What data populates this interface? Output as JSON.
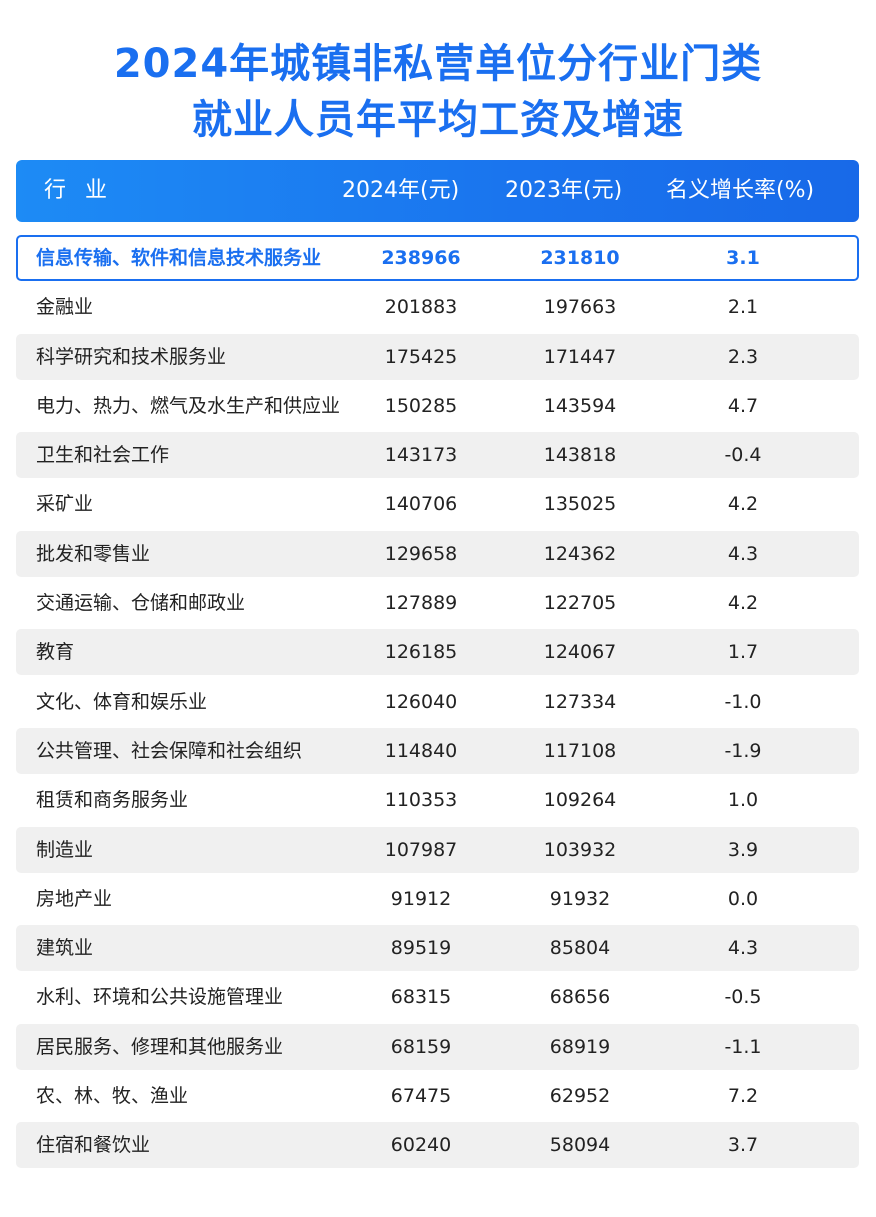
{
  "title_line1": "2024年城镇非私营单位分行业门类",
  "title_line2": "就业人员年平均工资及增速",
  "accent_color": "#1a6ff0",
  "chart_data": {
    "type": "table",
    "columns": [
      "行 业",
      "2024年(元)",
      "2023年(元)",
      "名义增长率(%)"
    ],
    "highlight_row": 0,
    "rows": [
      {
        "industry": "信息传输、软件和信息技术服务业",
        "y2024": "238966",
        "y2023": "231810",
        "growth": "3.1"
      },
      {
        "industry": "金融业",
        "y2024": "201883",
        "y2023": "197663",
        "growth": "2.1"
      },
      {
        "industry": "科学研究和技术服务业",
        "y2024": "175425",
        "y2023": "171447",
        "growth": "2.3"
      },
      {
        "industry": "电力、热力、燃气及水生产和供应业",
        "y2024": "150285",
        "y2023": "143594",
        "growth": "4.7"
      },
      {
        "industry": "卫生和社会工作",
        "y2024": "143173",
        "y2023": "143818",
        "growth": "-0.4"
      },
      {
        "industry": "采矿业",
        "y2024": "140706",
        "y2023": "135025",
        "growth": "4.2"
      },
      {
        "industry": "批发和零售业",
        "y2024": "129658",
        "y2023": "124362",
        "growth": "4.3"
      },
      {
        "industry": "交通运输、仓储和邮政业",
        "y2024": "127889",
        "y2023": "122705",
        "growth": "4.2"
      },
      {
        "industry": "教育",
        "y2024": "126185",
        "y2023": "124067",
        "growth": "1.7"
      },
      {
        "industry": "文化、体育和娱乐业",
        "y2024": "126040",
        "y2023": "127334",
        "growth": "-1.0"
      },
      {
        "industry": "公共管理、社会保障和社会组织",
        "y2024": "114840",
        "y2023": "117108",
        "growth": "-1.9"
      },
      {
        "industry": "租赁和商务服务业",
        "y2024": "110353",
        "y2023": "109264",
        "growth": "1.0"
      },
      {
        "industry": "制造业",
        "y2024": "107987",
        "y2023": "103932",
        "growth": "3.9"
      },
      {
        "industry": "房地产业",
        "y2024": "91912",
        "y2023": "91932",
        "growth": "0.0"
      },
      {
        "industry": "建筑业",
        "y2024": "89519",
        "y2023": "85804",
        "growth": "4.3"
      },
      {
        "industry": "水利、环境和公共设施管理业",
        "y2024": "68315",
        "y2023": "68656",
        "growth": "-0.5"
      },
      {
        "industry": "居民服务、修理和其他服务业",
        "y2024": "68159",
        "y2023": "68919",
        "growth": "-1.1"
      },
      {
        "industry": "农、林、牧、渔业",
        "y2024": "67475",
        "y2023": "62952",
        "growth": "7.2"
      },
      {
        "industry": "住宿和餐饮业",
        "y2024": "60240",
        "y2023": "58094",
        "growth": "3.7"
      }
    ]
  }
}
